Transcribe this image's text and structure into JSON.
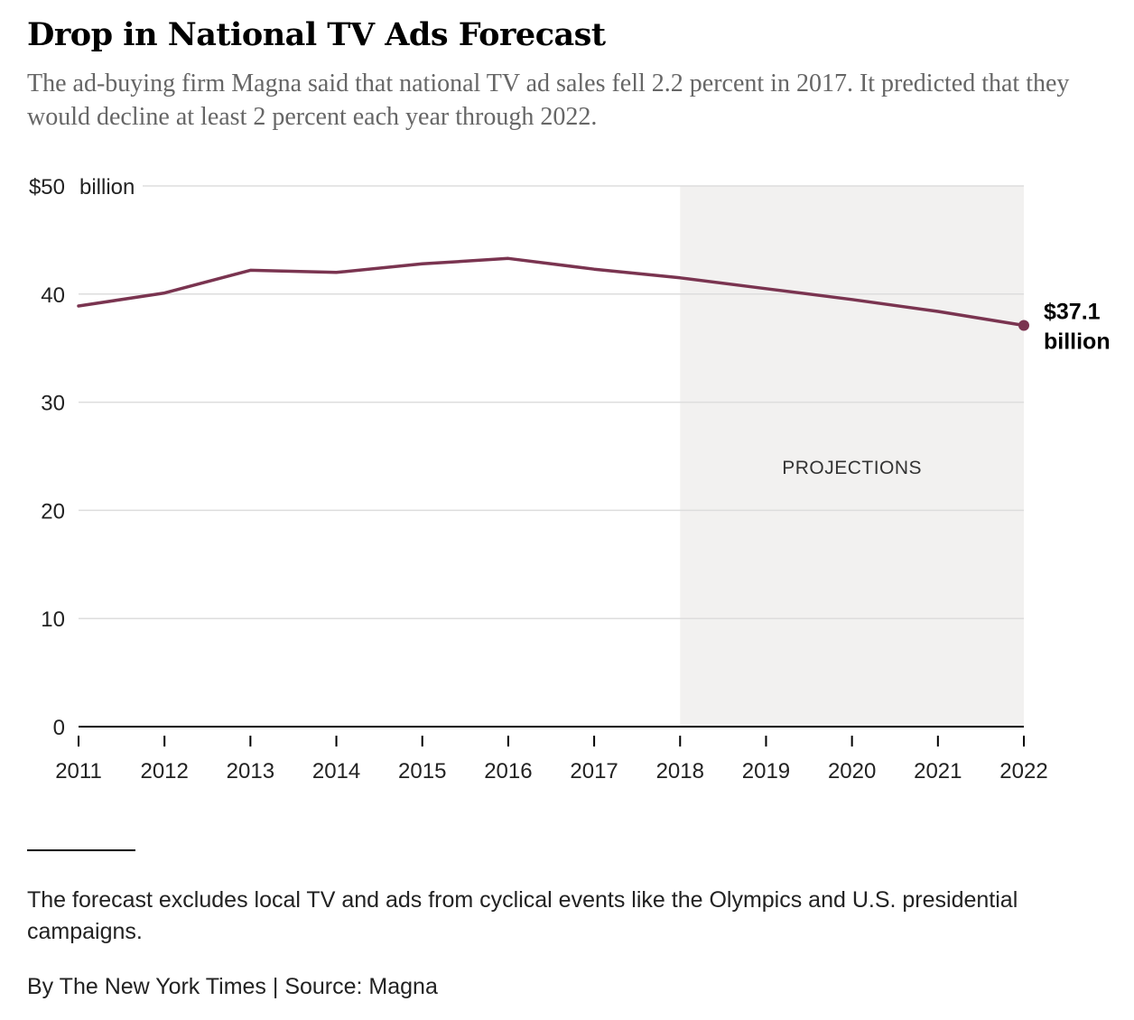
{
  "header": {
    "title": "Drop in National TV Ads Forecast",
    "subtitle": "The ad-buying firm Magna said that national TV ad sales fell 2.2 percent in 2017. It predicted that they would decline at least 2 percent each year through 2022."
  },
  "chart_data": {
    "type": "line",
    "x": [
      2011,
      2012,
      2013,
      2014,
      2015,
      2016,
      2017,
      2018,
      2019,
      2020,
      2021,
      2022
    ],
    "series": [
      {
        "values": [
          38.9,
          40.1,
          42.2,
          42.0,
          42.8,
          43.3,
          42.3,
          41.5,
          40.5,
          39.5,
          38.4,
          37.1
        ]
      }
    ],
    "ylim": [
      0,
      50
    ],
    "y_ticks": [
      0,
      10,
      20,
      30,
      40,
      50
    ],
    "y_tick_labels": [
      "0",
      "10",
      "20",
      "30",
      "40",
      "$50"
    ],
    "y_unit_label": "billion",
    "x_tick_labels": [
      "2011",
      "2012",
      "2013",
      "2014",
      "2015",
      "2016",
      "2017",
      "2018",
      "2019",
      "2020",
      "2021",
      "2022"
    ],
    "grid": true,
    "projection_region": {
      "from": 2018,
      "to": 2022,
      "label": "PROJECTIONS"
    },
    "end_annotation": {
      "line1": "$37.1",
      "line2": "billion"
    },
    "colors": {
      "line": "#7a3450",
      "grid": "#dddddd",
      "projection_bg": "#f2f1f0",
      "axis": "#000000"
    }
  },
  "footer": {
    "note": "The forecast excludes local TV and ads from cyclical events like the Olympics and U.S. presidential campaigns.",
    "credit": "By The New York Times | Source: Magna"
  }
}
